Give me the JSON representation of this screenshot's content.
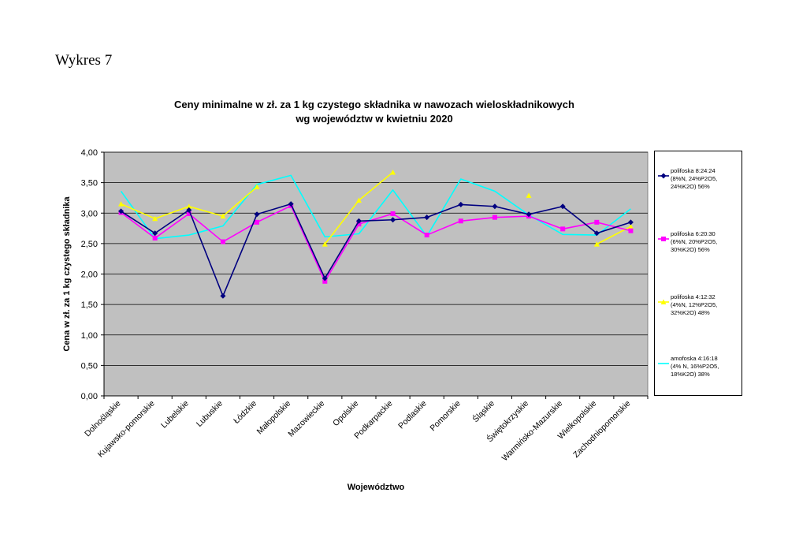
{
  "figure_label": "Wykres 7",
  "chart_data": {
    "type": "line",
    "title": "Ceny minimalne  w zł. za 1 kg czystego składnika w nawozach wieloskładnikowych",
    "subtitle": "wg województw w kwietniu 2020",
    "xlabel": "Województwo",
    "ylabel": "Cena w zł. za 1 kg czystego składnika",
    "ylim": [
      0,
      4
    ],
    "yticks": [
      "0,00",
      "0,50",
      "1,00",
      "1,50",
      "2,00",
      "2,50",
      "3,00",
      "3,50",
      "4,00"
    ],
    "grid": true,
    "legend_position": "right",
    "plot_background": "#c0c0c0",
    "categories": [
      "Dolnośląskie",
      "Kujawsko-pomorskie",
      "Lubelskie",
      "Lubuskie",
      "Łódzkie",
      "Małopolskie",
      "Mazowieckie",
      "Opolskie",
      "Podkarpackie",
      "Podlaskie",
      "Pomorskie",
      "Śląskie",
      "Świętokrzyskie",
      "Warmińsko-Mazurskie",
      "Wielkopolskie",
      "Zachodniopomorskie"
    ],
    "series": [
      {
        "name": "polifoska 8:24:24\n(8%N, 24%P2O5,\n24%K2O) 56%",
        "color": "#000080",
        "marker": "diamond",
        "values": [
          3.03,
          2.67,
          3.05,
          1.64,
          2.98,
          3.15,
          1.93,
          2.87,
          2.89,
          2.93,
          3.14,
          3.11,
          2.98,
          3.11,
          2.67,
          2.85
        ]
      },
      {
        "name": "polifoska 6:20:30\n(6%N, 20%P2O5,\n30%K2O) 56%",
        "color": "#ff00ff",
        "marker": "square",
        "values": [
          3.01,
          2.59,
          2.99,
          2.53,
          2.85,
          3.12,
          1.88,
          2.82,
          2.99,
          2.64,
          2.87,
          2.93,
          2.95,
          2.74,
          2.85,
          2.71
        ]
      },
      {
        "name": "polifoska 4:12:32\n(4%N, 12%P2O5,\n32%K2O) 48%",
        "color": "#ffff00",
        "marker": "triangle",
        "values": [
          3.15,
          2.91,
          3.11,
          2.95,
          3.43,
          null,
          2.49,
          3.21,
          3.67,
          null,
          null,
          null,
          3.29,
          null,
          2.49,
          2.78
        ]
      },
      {
        "name": "amofoska 4:16:18\n(4% N, 16%P2O5,\n18%K2O) 38%",
        "color": "#00ffff",
        "marker": "none",
        "values": [
          3.36,
          2.58,
          2.64,
          2.79,
          3.47,
          3.62,
          2.61,
          2.66,
          3.38,
          2.62,
          3.56,
          3.36,
          2.97,
          2.65,
          2.64,
          3.07
        ]
      }
    ]
  }
}
